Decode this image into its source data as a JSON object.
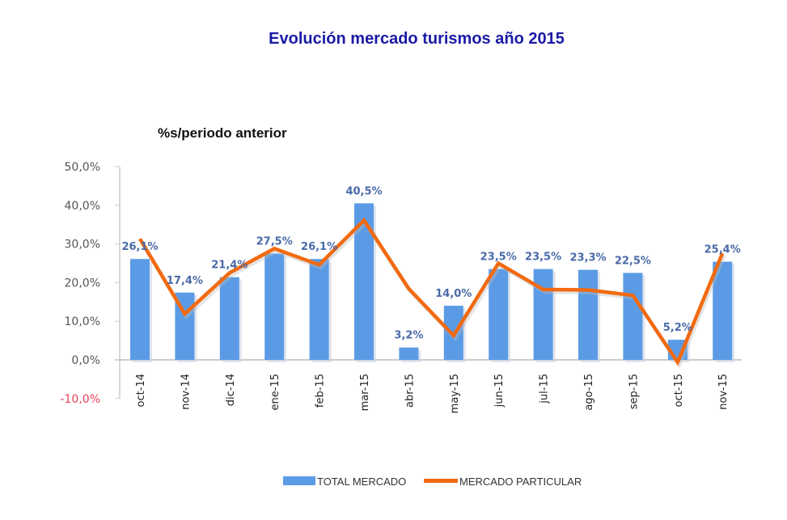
{
  "chart_data": {
    "type": "bar+line",
    "title": "Evolución mercado turismos año 2015",
    "subtitle": "%s/periodo anterior",
    "categories": [
      "oct-14",
      "nov-14",
      "dic-14",
      "ene-15",
      "feb-15",
      "mar-15",
      "abr-15",
      "may-15",
      "jun-15",
      "jul-15",
      "ago-15",
      "sep-15",
      "oct-15",
      "nov-15"
    ],
    "series": [
      {
        "name": "TOTAL MERCADO",
        "type": "bar",
        "color": "#5b9be6",
        "values": [
          26.1,
          17.4,
          21.4,
          27.5,
          26.1,
          40.5,
          3.2,
          14.0,
          23.5,
          23.5,
          23.3,
          22.5,
          5.2,
          25.4
        ],
        "labels": [
          "26,1%",
          "17,4%",
          "21,4%",
          "27,5%",
          "26,1%",
          "40,5%",
          "3,2%",
          "14,0%",
          "23,5%",
          "23,5%",
          "23,3%",
          "22,5%",
          "5,2%",
          "25,4%"
        ]
      },
      {
        "name": "MERCADO PARTICULAR",
        "type": "line",
        "color": "#f26a10",
        "values": [
          31.3,
          11.9,
          22.5,
          28.8,
          24.6,
          36.1,
          18.4,
          6.3,
          25.0,
          18.2,
          18.1,
          16.7,
          -0.6,
          27.6
        ]
      }
    ],
    "ylim": [
      -10,
      50
    ],
    "yticks": [
      50,
      40,
      30,
      20,
      10,
      0,
      -10
    ],
    "ytick_labels": [
      "50,0%",
      "40,0%",
      "30,0%",
      "20,0%",
      "10,0%",
      "0,0%",
      "-10,0%"
    ],
    "negative_tick_color": "#e8405a",
    "grid": false,
    "legend": "bottom"
  }
}
